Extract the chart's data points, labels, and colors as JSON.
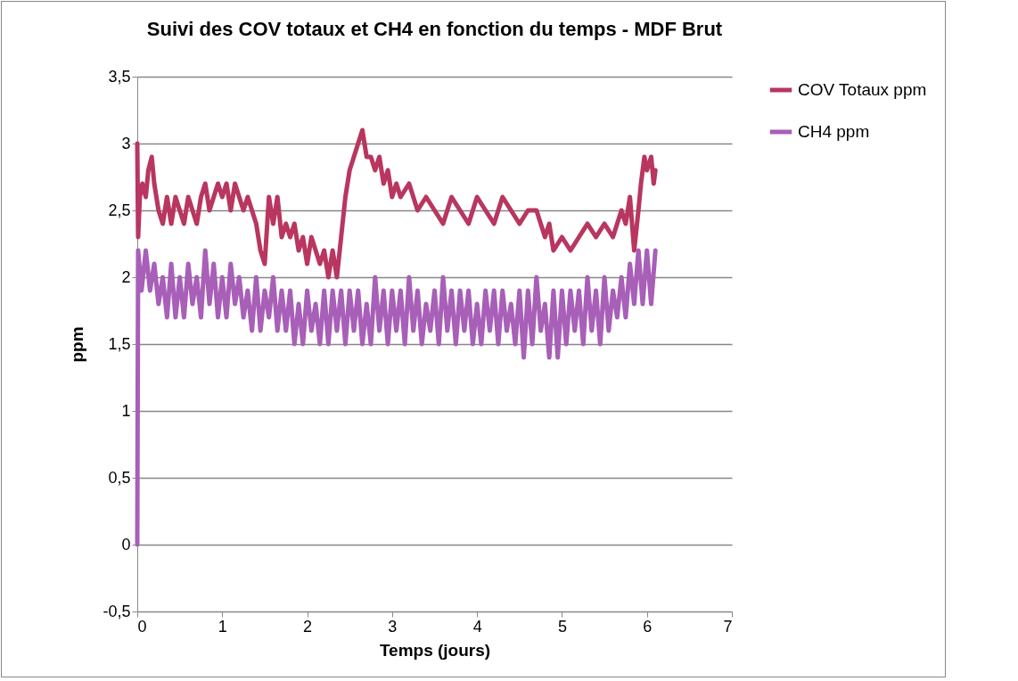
{
  "chart_data": {
    "type": "line",
    "title": "Suivi des COV totaux et CH4 en fonction du temps - MDF Brut",
    "xlabel": "Temps (jours)",
    "ylabel": "ppm",
    "xlim": [
      0,
      7
    ],
    "xticks": [
      0,
      1,
      2,
      3,
      4,
      5,
      6,
      7
    ],
    "ylim": [
      -0.5,
      3.5
    ],
    "yticks": [
      {
        "value": -0.5,
        "label": "-0,5"
      },
      0,
      {
        "value": 0.5,
        "label": "0,5"
      },
      1,
      {
        "value": 1.5,
        "label": "1,5"
      },
      2,
      {
        "value": 2.5,
        "label": "2,5"
      },
      3,
      {
        "value": 3.5,
        "label": "3,5"
      }
    ],
    "grid": "y",
    "legend": "right",
    "marker": "none",
    "line_style": "solid",
    "series": [
      {
        "name": "COV Totaux ppm",
        "color": "#b8365f",
        "x": [
          0,
          0.01,
          0.03,
          0.06,
          0.1,
          0.13,
          0.17,
          0.2,
          0.25,
          0.3,
          0.35,
          0.4,
          0.45,
          0.5,
          0.55,
          0.6,
          0.65,
          0.7,
          0.75,
          0.8,
          0.85,
          0.9,
          0.95,
          1.0,
          1.05,
          1.1,
          1.15,
          1.2,
          1.25,
          1.3,
          1.35,
          1.4,
          1.45,
          1.5,
          1.55,
          1.6,
          1.65,
          1.7,
          1.75,
          1.8,
          1.85,
          1.9,
          1.95,
          2.0,
          2.05,
          2.1,
          2.15,
          2.2,
          2.25,
          2.3,
          2.35,
          2.4,
          2.45,
          2.5,
          2.55,
          2.6,
          2.65,
          2.7,
          2.75,
          2.8,
          2.85,
          2.9,
          2.95,
          3.0,
          3.05,
          3.1,
          3.2,
          3.3,
          3.4,
          3.5,
          3.6,
          3.7,
          3.8,
          3.9,
          4.0,
          4.1,
          4.2,
          4.3,
          4.4,
          4.5,
          4.6,
          4.7,
          4.8,
          4.85,
          4.9,
          5.0,
          5.1,
          5.2,
          5.3,
          5.4,
          5.5,
          5.6,
          5.7,
          5.75,
          5.8,
          5.85,
          5.9,
          5.93,
          5.97,
          6.0,
          6.05,
          6.08,
          6.1
        ],
        "values": [
          3.0,
          2.3,
          2.6,
          2.7,
          2.6,
          2.8,
          2.9,
          2.7,
          2.5,
          2.4,
          2.6,
          2.4,
          2.6,
          2.5,
          2.4,
          2.6,
          2.5,
          2.4,
          2.6,
          2.7,
          2.5,
          2.6,
          2.7,
          2.6,
          2.7,
          2.5,
          2.7,
          2.6,
          2.5,
          2.6,
          2.5,
          2.4,
          2.2,
          2.1,
          2.6,
          2.4,
          2.6,
          2.3,
          2.4,
          2.3,
          2.4,
          2.2,
          2.3,
          2.1,
          2.3,
          2.2,
          2.1,
          2.2,
          2.0,
          2.2,
          2.0,
          2.3,
          2.6,
          2.8,
          2.9,
          3.0,
          3.1,
          2.9,
          2.9,
          2.8,
          2.9,
          2.7,
          2.8,
          2.6,
          2.7,
          2.6,
          2.7,
          2.5,
          2.6,
          2.5,
          2.4,
          2.6,
          2.5,
          2.4,
          2.6,
          2.5,
          2.4,
          2.6,
          2.5,
          2.4,
          2.5,
          2.5,
          2.3,
          2.4,
          2.2,
          2.3,
          2.2,
          2.3,
          2.4,
          2.3,
          2.4,
          2.3,
          2.5,
          2.4,
          2.6,
          2.2,
          2.5,
          2.7,
          2.9,
          2.8,
          2.9,
          2.7,
          2.8
        ]
      },
      {
        "name": "CH4 ppm",
        "color": "#a85fb8",
        "x": [
          0,
          0.01,
          0.05,
          0.1,
          0.15,
          0.2,
          0.25,
          0.3,
          0.35,
          0.4,
          0.45,
          0.5,
          0.55,
          0.6,
          0.65,
          0.7,
          0.75,
          0.8,
          0.85,
          0.9,
          0.95,
          1.0,
          1.05,
          1.1,
          1.15,
          1.2,
          1.25,
          1.3,
          1.35,
          1.4,
          1.45,
          1.5,
          1.55,
          1.6,
          1.65,
          1.7,
          1.75,
          1.8,
          1.85,
          1.9,
          1.95,
          2.0,
          2.05,
          2.1,
          2.15,
          2.2,
          2.25,
          2.3,
          2.35,
          2.4,
          2.45,
          2.5,
          2.55,
          2.6,
          2.65,
          2.7,
          2.75,
          2.8,
          2.85,
          2.9,
          2.95,
          3.0,
          3.05,
          3.1,
          3.15,
          3.2,
          3.25,
          3.3,
          3.35,
          3.4,
          3.45,
          3.5,
          3.55,
          3.6,
          3.65,
          3.7,
          3.75,
          3.8,
          3.85,
          3.9,
          3.95,
          4.0,
          4.05,
          4.1,
          4.15,
          4.2,
          4.25,
          4.3,
          4.35,
          4.4,
          4.45,
          4.5,
          4.55,
          4.6,
          4.65,
          4.7,
          4.75,
          4.8,
          4.85,
          4.9,
          4.95,
          5.0,
          5.05,
          5.1,
          5.15,
          5.2,
          5.25,
          5.3,
          5.35,
          5.4,
          5.45,
          5.5,
          5.55,
          5.6,
          5.65,
          5.7,
          5.75,
          5.8,
          5.85,
          5.9,
          5.95,
          6.0,
          6.05,
          6.1
        ],
        "values": [
          0,
          2.2,
          1.9,
          2.2,
          1.9,
          2.1,
          1.8,
          2.0,
          1.7,
          2.1,
          1.7,
          2.0,
          1.7,
          2.1,
          1.8,
          2.0,
          1.7,
          2.2,
          1.8,
          2.1,
          1.7,
          2.0,
          1.7,
          2.1,
          1.8,
          2.0,
          1.7,
          1.9,
          1.6,
          2.0,
          1.6,
          1.9,
          1.7,
          2.0,
          1.6,
          1.9,
          1.6,
          1.9,
          1.5,
          1.8,
          1.5,
          1.9,
          1.6,
          1.8,
          1.5,
          1.9,
          1.5,
          1.9,
          1.6,
          1.9,
          1.5,
          1.9,
          1.6,
          1.9,
          1.5,
          1.8,
          1.5,
          2.0,
          1.6,
          1.9,
          1.5,
          1.9,
          1.6,
          1.9,
          1.5,
          2.0,
          1.6,
          1.9,
          1.5,
          1.8,
          1.6,
          1.9,
          1.5,
          2.0,
          1.6,
          1.9,
          1.5,
          1.9,
          1.6,
          1.9,
          1.5,
          1.8,
          1.5,
          1.9,
          1.6,
          1.9,
          1.5,
          1.9,
          1.6,
          1.8,
          1.5,
          1.9,
          1.4,
          1.9,
          1.5,
          2.0,
          1.6,
          1.8,
          1.4,
          1.9,
          1.4,
          1.9,
          1.5,
          1.9,
          1.6,
          1.9,
          1.5,
          2.0,
          1.6,
          1.9,
          1.5,
          2.0,
          1.6,
          1.9,
          1.7,
          2.0,
          1.7,
          2.1,
          1.8,
          2.2,
          1.8,
          2.2,
          1.8,
          2.2
        ]
      }
    ]
  }
}
